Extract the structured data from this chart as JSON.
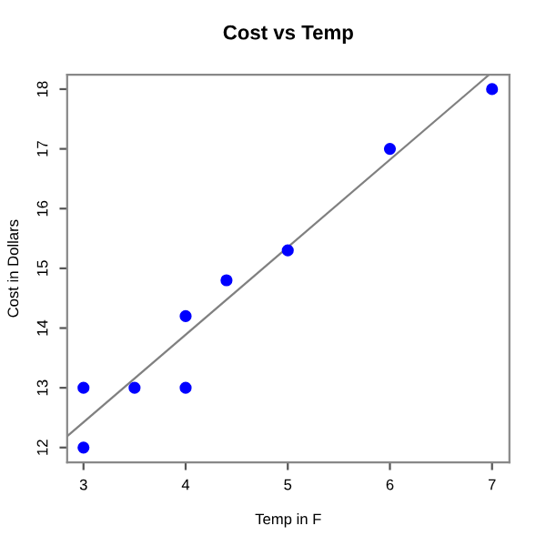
{
  "chart_data": {
    "type": "scatter",
    "title": "Cost vs Temp",
    "xlabel": "Temp in F",
    "ylabel": "Cost in Dollars",
    "xlim": [
      2.84,
      7.17
    ],
    "ylim": [
      11.75,
      18.24
    ],
    "xticks": [
      3,
      4,
      5,
      6,
      7
    ],
    "yticks": [
      12,
      13,
      14,
      15,
      16,
      17,
      18
    ],
    "grid": false,
    "series": [
      {
        "color": "#0000ff",
        "marker": "circle",
        "x": [
          3,
          3,
          3.5,
          4,
          4,
          4.4,
          5,
          6,
          7
        ],
        "values": [
          13,
          12,
          13,
          14.2,
          13,
          14.8,
          15.3,
          17,
          18
        ]
      },
      {
        "type": "line",
        "color": "#808080",
        "marker": "none",
        "line_style": "solid",
        "x": [
          2.84,
          6.97
        ],
        "values": [
          12.19,
          18.24
        ]
      }
    ]
  }
}
